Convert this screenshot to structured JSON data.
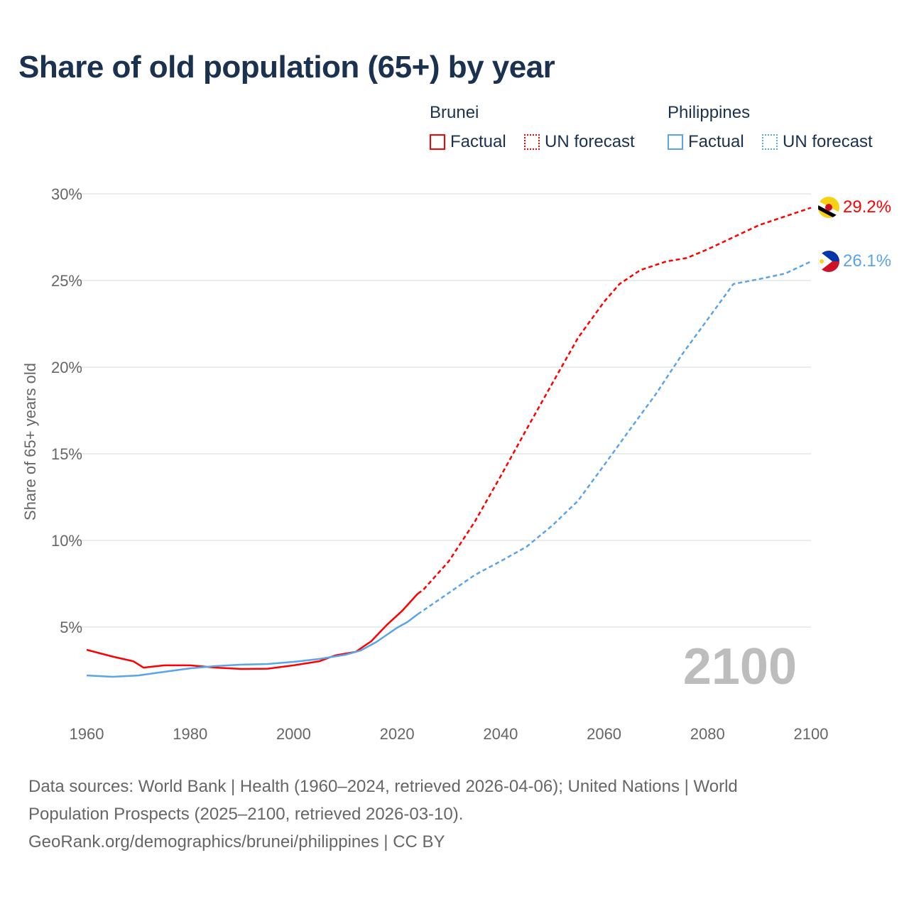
{
  "title": "Share of old population (65+) by year",
  "legend": {
    "groups": [
      {
        "name": "Brunei",
        "color": "#ff0000",
        "items": [
          "Factual",
          "UN forecast"
        ]
      },
      {
        "name": "Philippines",
        "color": "#5aa4ea",
        "items": [
          "Factual",
          "UN forecast"
        ]
      }
    ]
  },
  "year_watermark": "2100",
  "end_labels": {
    "brunei": "29.2%",
    "philippines": "26.1%"
  },
  "icons": {
    "brunei": "brunei-flag-icon",
    "philippines": "philippines-flag-icon"
  },
  "footer": {
    "line1": "Data sources: World Bank | Health (1960–2024, retrieved 2026-04-06); United Nations | World",
    "line2": "Population Prospects (2025–2100, retrieved 2026-03-10).",
    "line3": "GeoRank.org/demographics/brunei/philippines | CC BY"
  },
  "chart_data": {
    "type": "line",
    "title": "Share of old population (65+) by year",
    "xlabel": "",
    "ylabel": "Share of 65+ years old",
    "xlim": [
      1960,
      2100
    ],
    "ylim": [
      0,
      30
    ],
    "xticks": [
      "1960",
      "1980",
      "2000",
      "2020",
      "2040",
      "2060",
      "2080",
      "2100"
    ],
    "yticks": [
      "5%",
      "10%",
      "15%",
      "20%",
      "25%",
      "30%"
    ],
    "grid": true,
    "legend_position": "top-right",
    "series": [
      {
        "name": "Brunei — Factual",
        "color": "#ff0000",
        "dashed": false,
        "x": [
          1960,
          1965,
          1969,
          1971,
          1975,
          1980,
          1985,
          1990,
          1995,
          2000,
          2005,
          2008,
          2012,
          2015,
          2018,
          2021,
          2024
        ],
        "y": [
          3.69,
          3.3,
          3.03,
          2.66,
          2.79,
          2.79,
          2.66,
          2.58,
          2.6,
          2.79,
          3.03,
          3.36,
          3.57,
          4.18,
          5.12,
          5.94,
          6.93
        ]
      },
      {
        "name": "Brunei — UN forecast",
        "color": "#ff0000",
        "dashed": true,
        "x": [
          2024,
          2025,
          2030,
          2035,
          2040,
          2045,
          2050,
          2055,
          2060,
          2063,
          2067,
          2072,
          2076,
          2080,
          2085,
          2090,
          2095,
          2100
        ],
        "y": [
          6.93,
          7.13,
          8.8,
          11.07,
          13.7,
          16.4,
          19.06,
          21.7,
          23.77,
          24.8,
          25.6,
          26.1,
          26.3,
          26.8,
          27.5,
          28.2,
          28.7,
          29.2
        ]
      },
      {
        "name": "Philippines — Factual",
        "color": "#5aa4ea",
        "dashed": false,
        "x": [
          1960,
          1965,
          1970,
          1975,
          1980,
          1985,
          1990,
          1995,
          2000,
          2005,
          2010,
          2013,
          2016,
          2020,
          2022,
          2024
        ],
        "y": [
          2.21,
          2.13,
          2.21,
          2.42,
          2.62,
          2.75,
          2.83,
          2.87,
          2.99,
          3.16,
          3.4,
          3.65,
          4.14,
          4.96,
          5.29,
          5.74
        ]
      },
      {
        "name": "Philippines — UN forecast",
        "color": "#5aa4ea",
        "dashed": true,
        "x": [
          2024,
          2030,
          2035,
          2040,
          2045,
          2050,
          2055,
          2060,
          2065,
          2070,
          2075,
          2080,
          2085,
          2090,
          2095,
          2100
        ],
        "y": [
          5.74,
          6.97,
          8.0,
          8.8,
          9.63,
          10.86,
          12.3,
          14.34,
          16.4,
          18.44,
          20.7,
          22.75,
          24.8,
          25.08,
          25.4,
          26.1
        ]
      }
    ]
  }
}
